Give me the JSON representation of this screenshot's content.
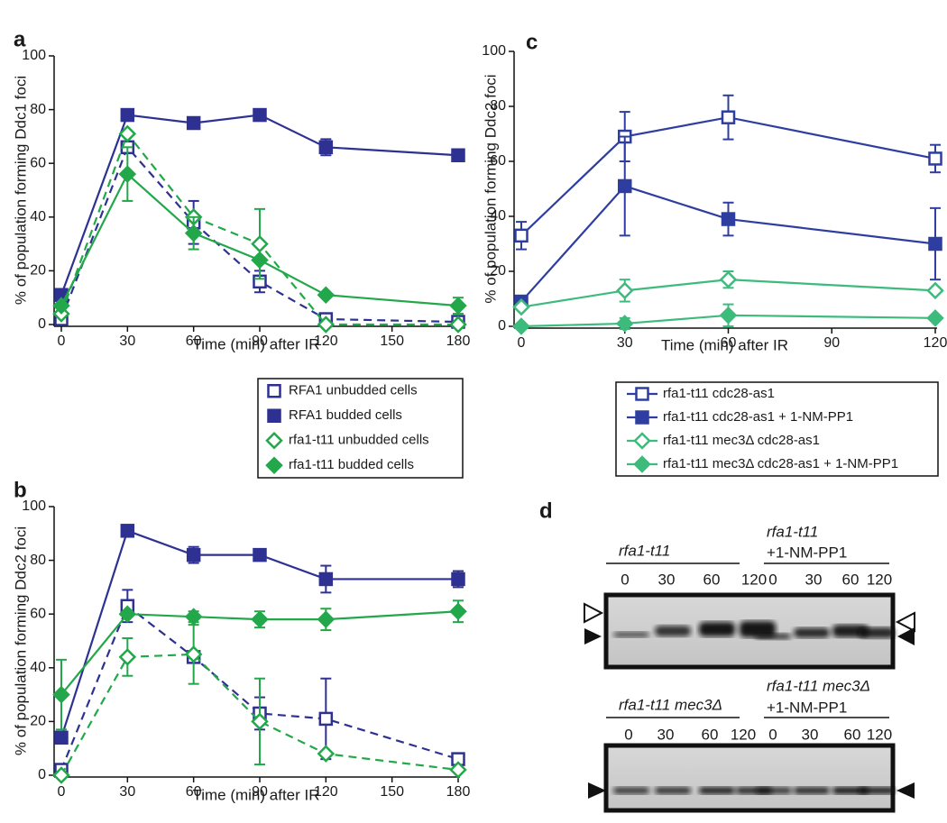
{
  "chart_data": [
    {
      "type": "line",
      "label": "a",
      "xlabel": "Time (min) after IR",
      "ylabel": "% of population forming Ddc1 foci",
      "x": [
        0,
        30,
        60,
        90,
        120,
        180
      ],
      "xlim": [
        0,
        180
      ],
      "xticks": [
        0,
        30,
        60,
        90,
        120,
        150,
        180
      ],
      "ylim": [
        0,
        100
      ],
      "yticks": [
        0,
        20,
        40,
        60,
        80,
        100
      ],
      "legend": "below",
      "series": [
        {
          "name": "RFA1 unbudded cells",
          "color": "#2e3192",
          "marker": "square",
          "filled": false,
          "dashed": true,
          "values": [
            2,
            66,
            38,
            16,
            2,
            1
          ],
          "errors": [
            null,
            null,
            8,
            4,
            null,
            null
          ]
        },
        {
          "name": "RFA1 budded cells",
          "color": "#2e3192",
          "marker": "square",
          "filled": true,
          "dashed": false,
          "values": [
            11,
            78,
            75,
            78,
            66,
            63
          ],
          "errors": [
            null,
            null,
            null,
            2,
            3,
            null
          ]
        },
        {
          "name": "rfa1-t11 unbudded cells",
          "color": "#22a84a",
          "marker": "diamond",
          "filled": false,
          "dashed": true,
          "values": [
            4,
            71,
            40,
            30,
            0,
            0
          ],
          "errors": [
            null,
            null,
            null,
            13,
            null,
            null
          ]
        },
        {
          "name": "rfa1-t11 budded cells",
          "color": "#22a84a",
          "marker": "diamond",
          "filled": true,
          "dashed": false,
          "values": [
            7,
            56,
            34,
            24,
            11,
            7
          ],
          "errors": [
            null,
            10,
            6,
            null,
            null,
            3
          ]
        }
      ]
    },
    {
      "type": "line",
      "label": "b",
      "xlabel": "Time (min) after IR",
      "ylabel": "% of population forming Ddc2 foci",
      "x": [
        0,
        30,
        60,
        90,
        120,
        180
      ],
      "xlim": [
        0,
        180
      ],
      "xticks": [
        0,
        30,
        60,
        90,
        120,
        150,
        180
      ],
      "ylim": [
        0,
        100
      ],
      "yticks": [
        0,
        20,
        40,
        60,
        80,
        100
      ],
      "series": [
        {
          "color": "#2e3192",
          "marker": "square",
          "filled": false,
          "dashed": true,
          "values": [
            2,
            63,
            44,
            23,
            21,
            6
          ],
          "errors": [
            null,
            6,
            null,
            6,
            15,
            null
          ]
        },
        {
          "color": "#2e3192",
          "marker": "square",
          "filled": true,
          "dashed": false,
          "values": [
            14,
            91,
            82,
            82,
            73,
            73
          ],
          "errors": [
            null,
            null,
            3,
            null,
            5,
            3
          ]
        },
        {
          "color": "#22a84a",
          "marker": "diamond",
          "filled": false,
          "dashed": true,
          "values": [
            0,
            44,
            45,
            20,
            8,
            2
          ],
          "errors": [
            null,
            7,
            11,
            16,
            null,
            null
          ]
        },
        {
          "color": "#22a84a",
          "marker": "diamond",
          "filled": true,
          "dashed": false,
          "values": [
            30,
            60,
            59,
            58,
            58,
            61
          ],
          "errors": [
            13,
            null,
            2,
            3,
            4,
            4
          ]
        }
      ]
    },
    {
      "type": "line",
      "label": "c",
      "xlabel": "Time (min) after IR",
      "ylabel": "% of population forming Ddc2 foci",
      "x": [
        0,
        30,
        60,
        120
      ],
      "xlim": [
        0,
        120
      ],
      "xticks": [
        0,
        30,
        60,
        90,
        120
      ],
      "ylim": [
        0,
        100
      ],
      "yticks": [
        0,
        20,
        40,
        60,
        80,
        100
      ],
      "legend": "below",
      "series": [
        {
          "name": "rfa1-t11 cdc28-as1",
          "color": "#2e3ea0",
          "marker": "square",
          "filled": false,
          "dashed": false,
          "values": [
            33,
            69,
            76,
            61
          ],
          "errors": [
            5,
            9,
            8,
            5
          ]
        },
        {
          "name": "rfa1-t11 cdc28-as1 + 1-NM-PP1",
          "color": "#2e3ea0",
          "marker": "square",
          "filled": true,
          "dashed": false,
          "values": [
            9,
            51,
            39,
            30
          ],
          "errors": [
            null,
            18,
            6,
            13
          ]
        },
        {
          "name": "rfa1-t11 mec3Δ cdc28-as1",
          "color": "#3dbb7d",
          "marker": "diamond",
          "filled": false,
          "dashed": false,
          "values": [
            7,
            13,
            17,
            13
          ],
          "errors": [
            null,
            4,
            3,
            null
          ]
        },
        {
          "name": "rfa1-t11 mec3Δ cdc28-as1 + 1-NM-PP1",
          "color": "#3dbb7d",
          "marker": "diamond",
          "filled": true,
          "dashed": false,
          "values": [
            0,
            1,
            4,
            3
          ],
          "errors": [
            null,
            2,
            4,
            null
          ]
        }
      ]
    }
  ],
  "blot": {
    "label": "d",
    "top": {
      "left_title": "rfa1-t11",
      "right_title": [
        "rfa1-t11",
        "+1-NM-PP1"
      ],
      "lanes": [
        0,
        30,
        60,
        120,
        0,
        30,
        60,
        120
      ]
    },
    "bottom": {
      "left_title": "rfa1-t11 mec3Δ",
      "right_title": [
        "rfa1-t11 mec3Δ",
        "+1-NM-PP1"
      ],
      "lanes": [
        0,
        30,
        60,
        120,
        0,
        30,
        60,
        120
      ]
    }
  }
}
